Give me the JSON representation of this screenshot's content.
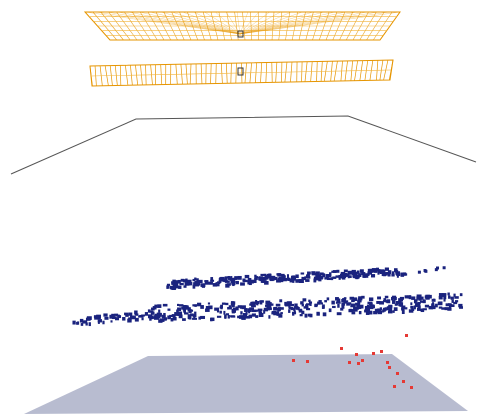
{
  "scene": {
    "background": "#ffffff",
    "colors": {
      "camera_frustum_edge": "#e69500",
      "camera_frustum_light": "#f2b43a",
      "camera_center": "#333333",
      "horizon_lines": "#555555",
      "point_cloud_blue": "#1a237e",
      "point_cloud_red": "#e53935",
      "ground_plane": "#b8bcd0"
    },
    "objects": [
      {
        "name": "upper-camera-array",
        "kind": "wireframe-frustums"
      },
      {
        "name": "lower-camera-array",
        "kind": "wireframe-frustums"
      },
      {
        "name": "horizon-outline",
        "kind": "line-strip"
      },
      {
        "name": "blue-point-cloud",
        "kind": "points"
      },
      {
        "name": "red-point-cluster",
        "kind": "points"
      },
      {
        "name": "ground-plane",
        "kind": "polygon"
      }
    ]
  }
}
